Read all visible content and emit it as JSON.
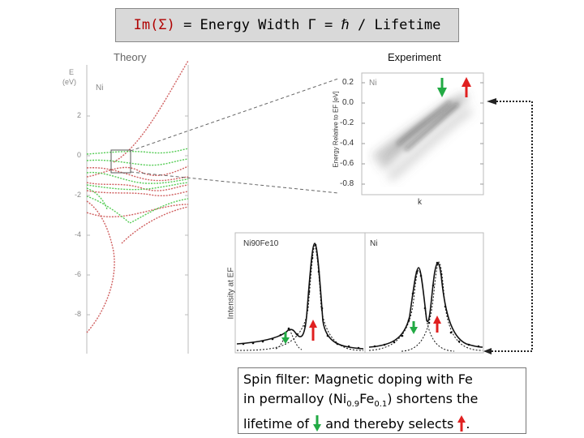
{
  "title": {
    "im": "Im(Σ)",
    "rest": " = Energy Width Γ = ℏ / Lifetime"
  },
  "theory": {
    "label": "Theory",
    "axis_e": "E",
    "axis_unit": "(eV)",
    "material": "Ni",
    "ticks": [
      "2",
      "0",
      "-2",
      "-4",
      "-6",
      "-8"
    ]
  },
  "experiment": {
    "label": "Experiment",
    "material": "Ni",
    "ylabel": "Energy Relative to EF [eV]",
    "ticks": [
      "0.2",
      "0.0",
      "-0.2",
      "-0.4",
      "-0.6",
      "-0.8"
    ],
    "xlabel": "k"
  },
  "mdc": {
    "ylabel": "Intensity at EF",
    "left_label": "Ni90Fe10",
    "right_label": "Ni"
  },
  "caption": {
    "line1": "Spin filter: Magnetic doping with Fe",
    "line2a": "in permalloy (Ni",
    "sub1": "0.9",
    "line2b": "Fe",
    "sub2": "0.1",
    "line2c": ") shortens the",
    "line3a": "lifetime of",
    "line3b": "and thereby selects",
    "line3c": "."
  },
  "colors": {
    "up_arrow": "#e02020",
    "down_arrow": "#22aa44",
    "theory_red": "#d06060",
    "theory_green": "#55cc55"
  }
}
